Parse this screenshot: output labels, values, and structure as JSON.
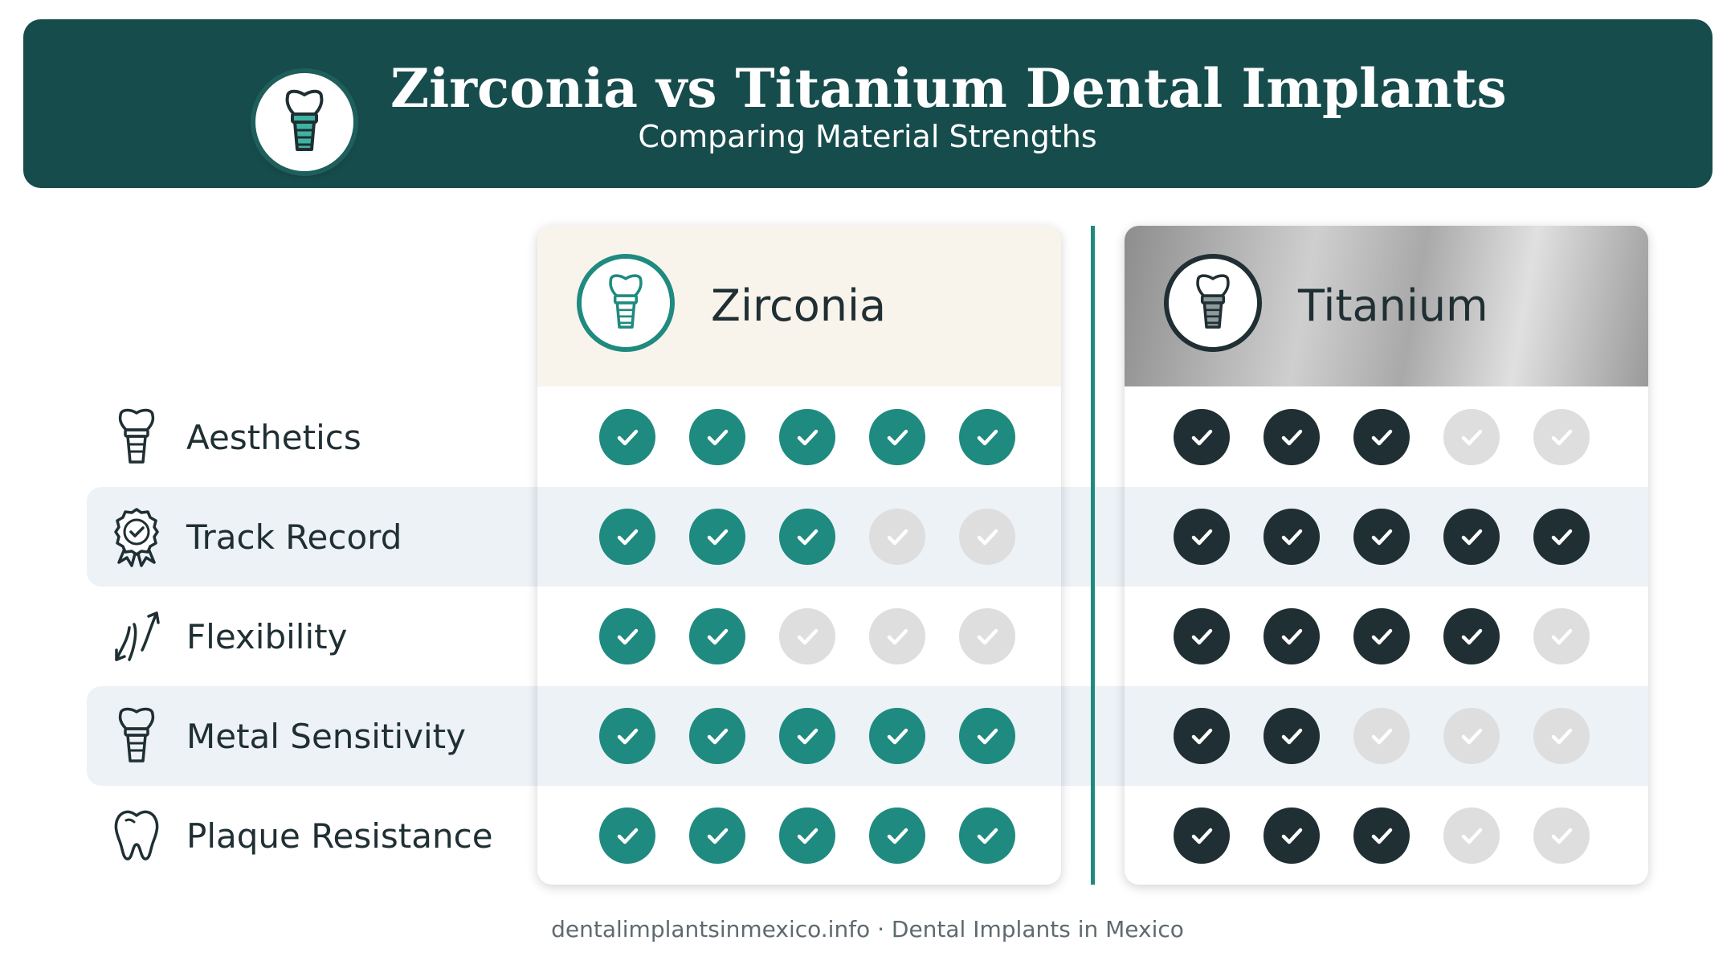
{
  "header": {
    "title": "Zirconia vs Titanium Dental Implants",
    "subtitle": "Comparing Material Strengths",
    "icon": "dental-implant-icon"
  },
  "columns": [
    {
      "name": "Zirconia",
      "icon": "dental-implant-icon",
      "accent": "#1f8a7f"
    },
    {
      "name": "Titanium",
      "icon": "dental-implant-icon",
      "accent": "#1f2f33"
    }
  ],
  "rows": [
    {
      "label": "Aesthetics",
      "icon": "implant-icon",
      "zirconia": 5,
      "titanium": 3
    },
    {
      "label": "Track Record",
      "icon": "award-ribbon-icon",
      "zirconia": 3,
      "titanium": 5
    },
    {
      "label": "Flexibility",
      "icon": "bend-arrows-icon",
      "zirconia": 2,
      "titanium": 4
    },
    {
      "label": "Metal Sensitivity",
      "icon": "implant-icon",
      "zirconia": 5,
      "titanium": 2
    },
    {
      "label": "Plaque Resistance",
      "icon": "tooth-icon",
      "zirconia": 5,
      "titanium": 3
    }
  ],
  "scale_max": 5,
  "colors": {
    "banner": "#174c4c",
    "zirconia_check": "#1f8a7f",
    "titanium_check": "#1f2f33",
    "inactive_check": "#dedede",
    "stripe": "#edf2f7"
  },
  "footer": "dentalimplantsinmexico.info · Dental Implants in Mexico"
}
